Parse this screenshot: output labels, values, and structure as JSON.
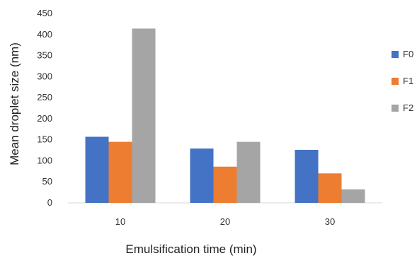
{
  "chart_data": {
    "type": "bar",
    "categories": [
      "10",
      "20",
      "30"
    ],
    "series": [
      {
        "name": "F0",
        "values": [
          157,
          129,
          126
        ],
        "color": "#4472C4"
      },
      {
        "name": "F1",
        "values": [
          145,
          86,
          70
        ],
        "color": "#ED7D31"
      },
      {
        "name": "F2",
        "values": [
          414,
          145,
          32
        ],
        "color": "#A5A5A5"
      }
    ],
    "xlabel": "Emulsification time (min)",
    "ylabel": "Mean droplet size (nm)",
    "ylim": [
      0,
      450
    ],
    "yticks": [
      "0",
      "50",
      "100",
      "150",
      "200",
      "250",
      "300",
      "350",
      "400",
      "450"
    ],
    "grid": false,
    "legend_position": "right"
  }
}
